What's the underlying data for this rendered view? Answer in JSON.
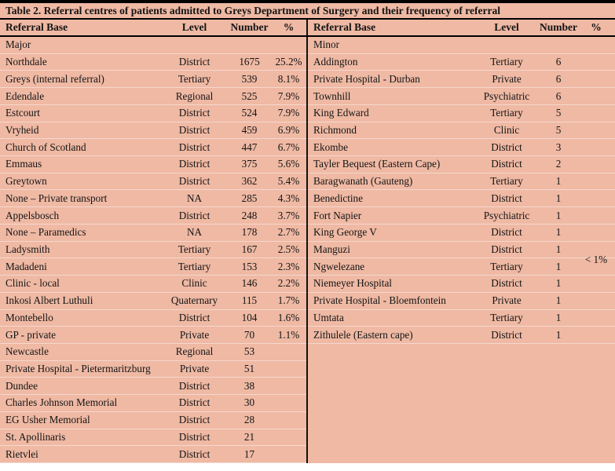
{
  "table": {
    "title": "Table 2. Referral centres of patients admitted to Greys Department of Surgery and their frequency of referral",
    "columns": [
      "Referral Base",
      "Level",
      "Number",
      "%"
    ],
    "left": {
      "section": "Major",
      "rows": [
        [
          "Northdale",
          "District",
          "1675",
          "25.2%"
        ],
        [
          "Greys (internal referral)",
          "Tertiary",
          "539",
          "8.1%"
        ],
        [
          "Edendale",
          "Regional",
          "525",
          "7.9%"
        ],
        [
          "Estcourt",
          "District",
          "524",
          "7.9%"
        ],
        [
          "Vryheid",
          "District",
          "459",
          "6.9%"
        ],
        [
          "Church of Scotland",
          "District",
          "447",
          "6.7%"
        ],
        [
          "Emmaus",
          "District",
          "375",
          "5.6%"
        ],
        [
          "Greytown",
          "District",
          "362",
          "5.4%"
        ],
        [
          "None – Private transport",
          "NA",
          "285",
          "4.3%"
        ],
        [
          "Appelsbosch",
          "District",
          "248",
          "3.7%"
        ],
        [
          "None – Paramedics",
          "NA",
          "178",
          "2.7%"
        ],
        [
          "Ladysmith",
          "Tertiary",
          "167",
          "2.5%"
        ],
        [
          "Madadeni",
          "Tertiary",
          "153",
          "2.3%"
        ],
        [
          "Clinic - local",
          "Clinic",
          "146",
          "2.2%"
        ],
        [
          "Inkosi Albert Luthuli",
          "Quaternary",
          "115",
          "1.7%"
        ],
        [
          "Montebello",
          "District",
          "104",
          "1.6%"
        ],
        [
          "GP - private",
          "Private",
          "70",
          "1.1%"
        ],
        [
          "Newcastle",
          "Regional",
          "53",
          ""
        ],
        [
          "Private Hospital - Pietermaritzburg",
          "Private",
          "51",
          ""
        ],
        [
          "Dundee",
          "District",
          "38",
          ""
        ],
        [
          "Charles Johnson Memorial",
          "District",
          "30",
          ""
        ],
        [
          "EG Usher Memorial",
          "District",
          "28",
          ""
        ],
        [
          "St. Apollinaris",
          "District",
          "21",
          ""
        ],
        [
          "Rietvlei",
          "District",
          "17",
          ""
        ]
      ]
    },
    "right": {
      "section": "Minor",
      "merged_pct": "< 1%",
      "rows": [
        [
          "Addington",
          "Tertiary",
          "6",
          ""
        ],
        [
          "Private Hospital - Durban",
          "Private",
          "6",
          ""
        ],
        [
          "Townhill",
          "Psychiatric",
          "6",
          ""
        ],
        [
          "King Edward",
          "Tertiary",
          "5",
          ""
        ],
        [
          "Richmond",
          "Clinic",
          "5",
          ""
        ],
        [
          "Ekombe",
          "District",
          "3",
          ""
        ],
        [
          "Tayler Bequest (Eastern Cape)",
          "District",
          "2",
          ""
        ],
        [
          "Baragwanath (Gauteng)",
          "Tertiary",
          "1",
          ""
        ],
        [
          "Benedictine",
          "District",
          "1",
          ""
        ],
        [
          "Fort Napier",
          "Psychiatric",
          "1",
          ""
        ],
        [
          "King George V",
          "District",
          "1",
          ""
        ],
        [
          "Manguzi",
          "District",
          "1",
          ""
        ],
        [
          "Ngwelezane",
          "Tertiary",
          "1",
          ""
        ],
        [
          "Niemeyer Hospital",
          "District",
          "1",
          ""
        ],
        [
          "Private Hospital - Bloemfontein",
          "Private",
          "1",
          ""
        ],
        [
          "Umtata",
          "Tertiary",
          "1",
          ""
        ],
        [
          "Zithulele (Eastern cape)",
          "District",
          "1",
          ""
        ]
      ]
    },
    "colors": {
      "table_bg": "#efb9a4",
      "rule": "#000000",
      "text": "#141414"
    }
  }
}
